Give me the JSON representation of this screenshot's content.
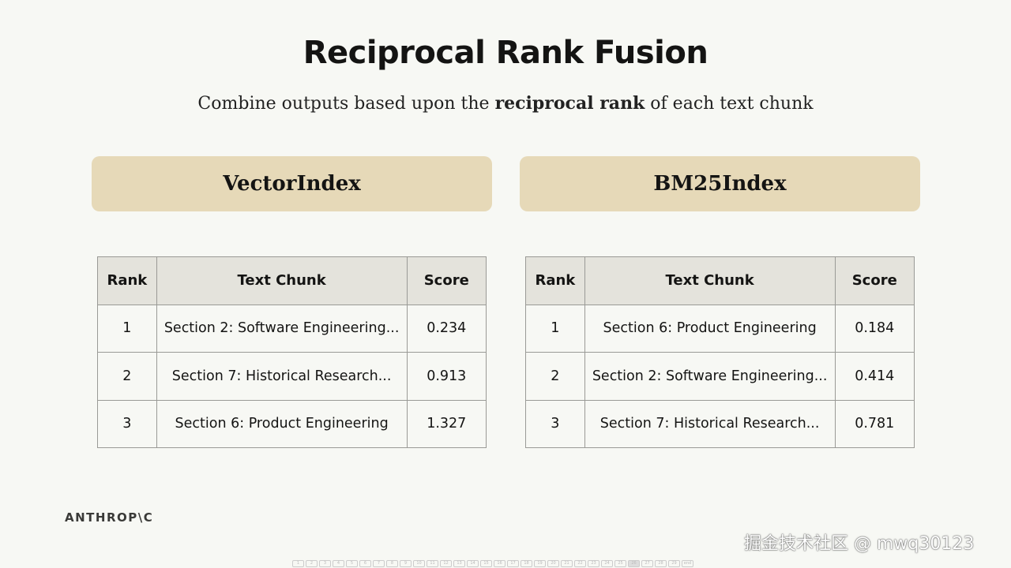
{
  "title": "Reciprocal Rank Fusion",
  "subtitle": {
    "pre": "Combine outputs based upon the ",
    "bold": "reciprocal rank",
    "post": " of each text chunk"
  },
  "columns": [
    "Rank",
    "Text Chunk",
    "Score"
  ],
  "panels": [
    {
      "name": "VectorIndex",
      "rows": [
        {
          "rank": "1",
          "chunk": "Section 2: Software Engineering...",
          "score": "0.234"
        },
        {
          "rank": "2",
          "chunk": "Section 7: Historical Research...",
          "score": "0.913"
        },
        {
          "rank": "3",
          "chunk": "Section 6: Product Engineering",
          "score": "1.327"
        }
      ]
    },
    {
      "name": "BM25Index",
      "rows": [
        {
          "rank": "1",
          "chunk": "Section 6: Product Engineering",
          "score": "0.184"
        },
        {
          "rank": "2",
          "chunk": "Section 2: Software Engineering...",
          "score": "0.414"
        },
        {
          "rank": "3",
          "chunk": "Section 7: Historical Research...",
          "score": "0.781"
        }
      ]
    }
  ],
  "logo": "ANTHROP\\C",
  "watermark": "掘金技术社区 @ mwq30123",
  "pager": {
    "pages": [
      "1",
      "2",
      "3",
      "4",
      "5",
      "6",
      "7",
      "8",
      "9",
      "10",
      "11",
      "12",
      "13",
      "14",
      "15",
      "16",
      "17",
      "18",
      "19",
      "20",
      "21",
      "22",
      "23",
      "24",
      "25",
      "26",
      "27",
      "28",
      "29",
      "end"
    ],
    "current": "26"
  },
  "colors": {
    "header_bg": "#e6d9b8",
    "table_header_bg": "#e4e3dc",
    "background": "#f7f8f4"
  }
}
